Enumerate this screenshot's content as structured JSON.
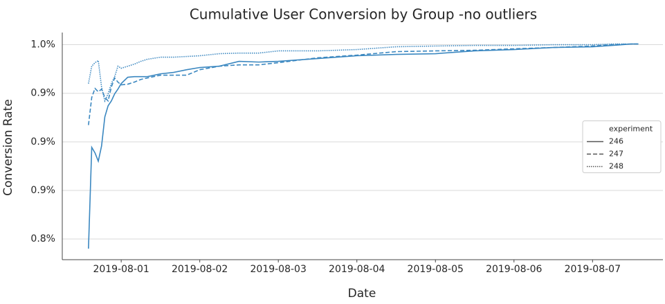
{
  "chart_data": {
    "type": "line",
    "title": "Cumulative User Conversion by Group -no outliers",
    "x_label": "Date",
    "y_label": "Conversion Rate",
    "x": [
      "2019-07-31T14:00",
      "2019-07-31T15:00",
      "2019-07-31T16:00",
      "2019-07-31T17:00",
      "2019-07-31T18:00",
      "2019-07-31T19:00",
      "2019-07-31T20:00",
      "2019-07-31T21:00",
      "2019-07-31T22:00",
      "2019-07-31T23:00",
      "2019-08-01T00:00",
      "2019-08-01T02:00",
      "2019-08-01T04:00",
      "2019-08-01T06:00",
      "2019-08-01T08:00",
      "2019-08-01T12:00",
      "2019-08-01T16:00",
      "2019-08-01T20:00",
      "2019-08-02T00:00",
      "2019-08-02T06:00",
      "2019-08-02T12:00",
      "2019-08-02T18:00",
      "2019-08-03T00:00",
      "2019-08-03T12:00",
      "2019-08-04T00:00",
      "2019-08-04T12:00",
      "2019-08-05T00:00",
      "2019-08-05T12:00",
      "2019-08-06T00:00",
      "2019-08-06T12:00",
      "2019-08-07T00:00",
      "2019-08-07T06:00",
      "2019-08-07T12:00",
      "2019-08-07T14:00"
    ],
    "legend_title": "experiment",
    "legend_position": "center right",
    "series": [
      {
        "name": "246",
        "color": "#3a87c0",
        "dash": "solid",
        "values": [
          0.8121,
          0.8955,
          0.8909,
          0.8841,
          0.8966,
          0.9206,
          0.9297,
          0.9337,
          0.9395,
          0.9434,
          0.948,
          0.9532,
          0.9537,
          0.9537,
          0.9537,
          0.956,
          0.9572,
          0.9594,
          0.9612,
          0.9623,
          0.9663,
          0.9657,
          0.9663,
          0.9686,
          0.9709,
          0.972,
          0.9726,
          0.9749,
          0.976,
          0.9777,
          0.9783,
          0.9794,
          0.9806,
          0.9806
        ]
      },
      {
        "name": "247",
        "color": "#3a87c0",
        "dash": "dashed",
        "values": [
          0.9138,
          0.9366,
          0.944,
          0.9412,
          0.9434,
          0.9366,
          0.9337,
          0.9452,
          0.9526,
          0.9492,
          0.9469,
          0.9475,
          0.9492,
          0.9514,
          0.9526,
          0.9549,
          0.9549,
          0.9549,
          0.9594,
          0.9623,
          0.9634,
          0.9634,
          0.9652,
          0.9692,
          0.9714,
          0.9743,
          0.9749,
          0.9754,
          0.9766,
          0.9777,
          0.9789,
          0.98,
          0.9806,
          0.9806
        ]
      },
      {
        "name": "248",
        "color": "#3a87c0",
        "dash": "dotted",
        "values": [
          0.948,
          0.9623,
          0.9652,
          0.9669,
          0.9452,
          0.9337,
          0.9395,
          0.948,
          0.9537,
          0.9623,
          0.9606,
          0.9623,
          0.964,
          0.9663,
          0.968,
          0.9697,
          0.9697,
          0.9703,
          0.9709,
          0.9726,
          0.9731,
          0.9731,
          0.9749,
          0.9749,
          0.976,
          0.9783,
          0.9789,
          0.9794,
          0.9794,
          0.98,
          0.98,
          0.9806,
          0.9806,
          0.9806
        ]
      }
    ],
    "xlim": [
      "2019-07-31T06:00",
      "2019-08-07T21:30"
    ],
    "xticks": [
      "2019-08-01",
      "2019-08-02",
      "2019-08-03",
      "2019-08-04",
      "2019-08-05",
      "2019-08-06",
      "2019-08-07"
    ],
    "ylim": [
      0.803,
      0.99
    ],
    "yticks": [
      {
        "value": 0.82,
        "label": "0.8%"
      },
      {
        "value": 0.86,
        "label": "0.9%"
      },
      {
        "value": 0.9,
        "label": "0.9%"
      },
      {
        "value": 0.94,
        "label": "0.9%"
      },
      {
        "value": 0.98,
        "label": "1.0%"
      }
    ],
    "grid": true
  }
}
